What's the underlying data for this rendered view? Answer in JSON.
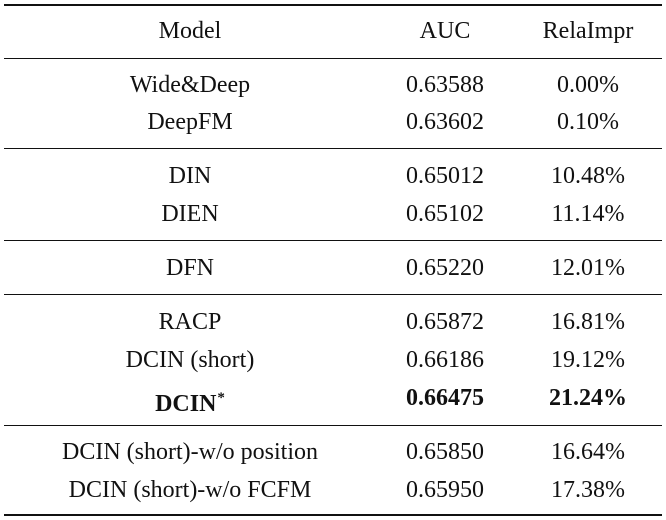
{
  "table": {
    "headers": {
      "model": "Model",
      "auc": "AUC",
      "rela_impr": "RelaImpr"
    },
    "groups": [
      {
        "rows": [
          {
            "model": "Wide&Deep",
            "auc": "0.63588",
            "rela_impr": "0.00%"
          },
          {
            "model": "DeepFM",
            "auc": "0.63602",
            "rela_impr": "0.10%"
          }
        ]
      },
      {
        "rows": [
          {
            "model": "DIN",
            "auc": "0.65012",
            "rela_impr": "10.48%"
          },
          {
            "model": "DIEN",
            "auc": "0.65102",
            "rela_impr": "11.14%"
          }
        ]
      },
      {
        "rows": [
          {
            "model": "DFN",
            "auc": "0.65220",
            "rela_impr": "12.01%"
          }
        ]
      },
      {
        "rows": [
          {
            "model": "RACP",
            "auc": "0.65872",
            "rela_impr": "16.81%"
          },
          {
            "model": "DCIN (short)",
            "auc": "0.66186",
            "rela_impr": "19.12%"
          },
          {
            "model": "DCIN",
            "marker": "*",
            "auc": "0.66475",
            "rela_impr": "21.24%",
            "bold": true
          }
        ]
      },
      {
        "rows": [
          {
            "model": "DCIN (short)-w/o position",
            "auc": "0.65850",
            "rela_impr": "16.64%"
          },
          {
            "model": "DCIN (short)-w/o FCFM",
            "auc": "0.65950",
            "rela_impr": "17.38%"
          }
        ]
      }
    ]
  }
}
